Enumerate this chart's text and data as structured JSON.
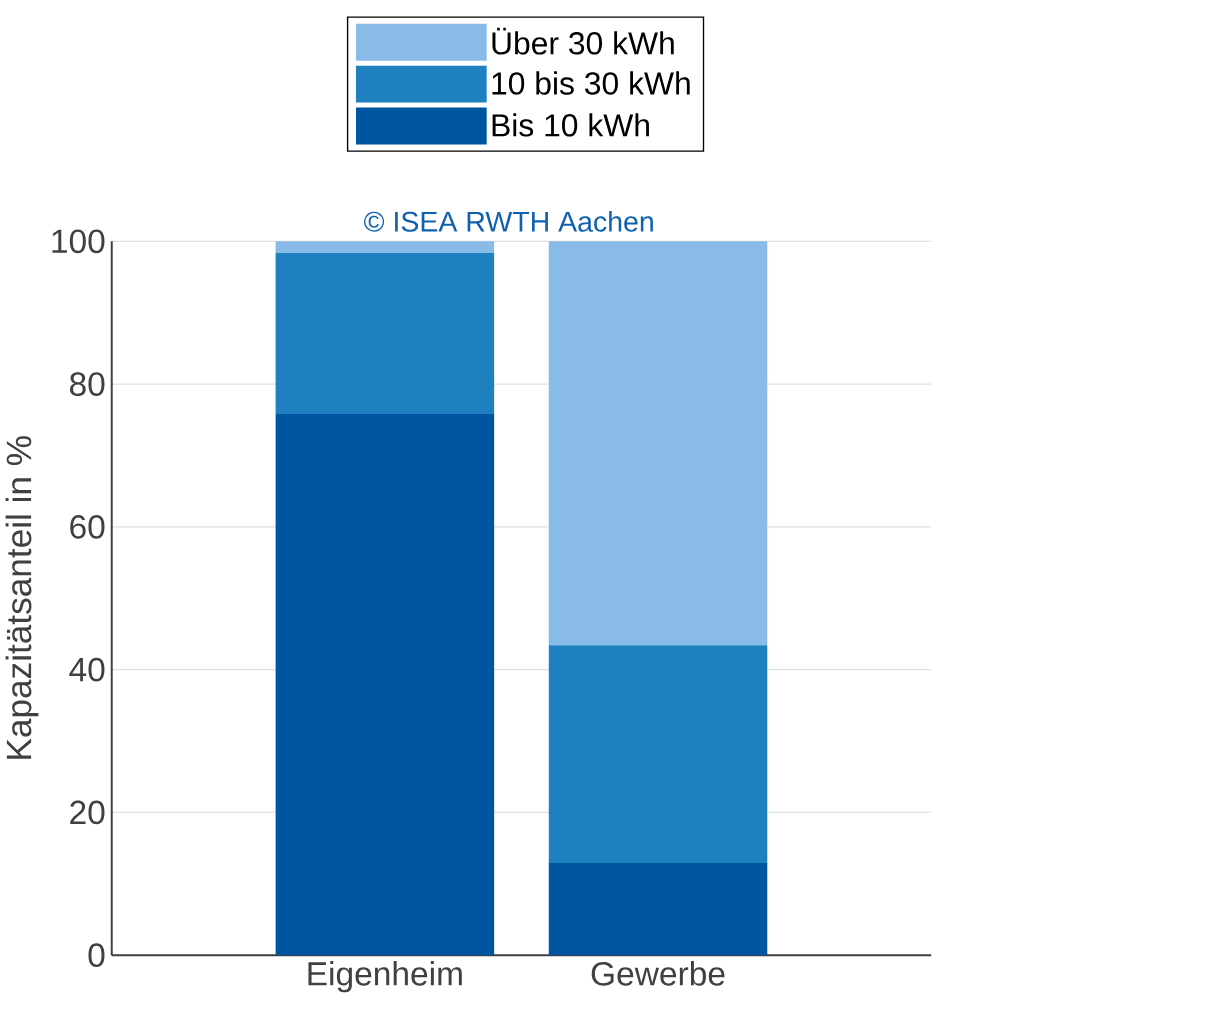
{
  "chart_data": {
    "type": "bar",
    "stacked": true,
    "ylabel": "Kapazitätsanteil in %",
    "categories": [
      "Eigenheim",
      "Gewerbe"
    ],
    "series": [
      {
        "name": "Bis 10 kWh",
        "color": "#0055a0",
        "values": [
          75.8,
          12.9
        ]
      },
      {
        "name": "10 bis 30 kWh",
        "color": "#1f80c0",
        "values": [
          22.6,
          30.5
        ]
      },
      {
        "name": "Über 30 kWh",
        "color": "#88bbe8",
        "values": [
          1.6,
          56.6
        ]
      }
    ],
    "ylim": [
      0,
      100
    ],
    "yticks": [
      0,
      20,
      40,
      60,
      80,
      100
    ],
    "grid": "y",
    "legend": "top",
    "annotations": [
      "© ISEA RWTH Aachen"
    ]
  }
}
